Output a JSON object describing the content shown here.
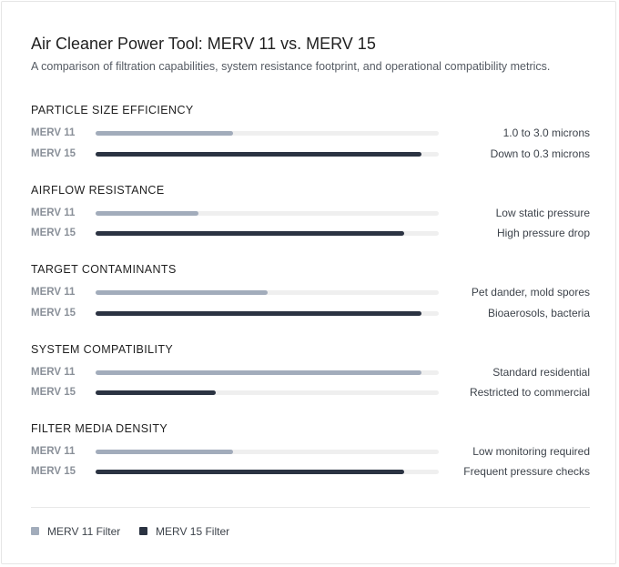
{
  "header": {
    "title": "Air Cleaner Power Tool: MERV 11 vs. MERV 15",
    "subtitle": "A comparison of filtration capabilities, system resistance footprint, and operational compatibility metrics."
  },
  "colors": {
    "merv11": "#a2acbb",
    "merv15": "#2b3342",
    "track": "#efefef"
  },
  "chart_data": {
    "type": "bar",
    "orientation": "horizontal",
    "value_scale": "relative level 0-1",
    "categories": [
      "PARTICLE SIZE EFFICIENCY",
      "AIRFLOW RESISTANCE",
      "TARGET CONTAMINANTS",
      "SYSTEM COMPATIBILITY",
      "FILTER MEDIA DENSITY"
    ],
    "series": [
      {
        "name": "MERV 11",
        "values": [
          0.4,
          0.3,
          0.5,
          0.95,
          0.4
        ],
        "annotations": [
          "1.0 to 3.0 microns",
          "Low static pressure",
          "Pet dander, mold spores",
          "Standard residential",
          "Low monitoring required"
        ]
      },
      {
        "name": "MERV 15",
        "values": [
          0.95,
          0.9,
          0.95,
          0.35,
          0.9
        ],
        "annotations": [
          "Down to 0.3 microns",
          "High pressure drop",
          "Bioaerosols, bacteria",
          "Restricted to commercial",
          "Frequent pressure checks"
        ]
      }
    ],
    "legend": {
      "position": "bottom-left",
      "entries": [
        "MERV 11 Filter",
        "MERV 15 Filter"
      ]
    }
  }
}
